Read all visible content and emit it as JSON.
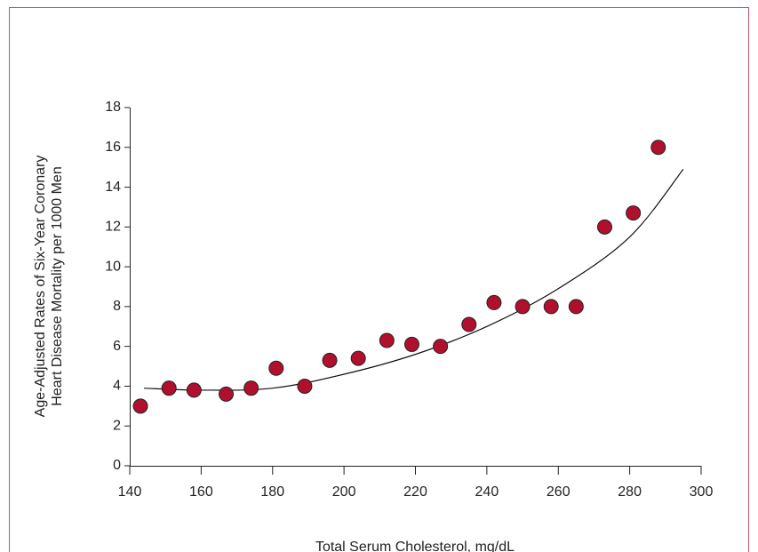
{
  "chart_data": {
    "type": "scatter",
    "x_label": "Total Serum Cholesterol, mg/dL",
    "y_label": [
      "Age-Adjusted Rates of Six-Year Coronary",
      "Heart Disease Mortality per 1000 Men"
    ],
    "xlim": [
      140,
      300
    ],
    "ylim": [
      0,
      18
    ],
    "xticks": [
      140,
      160,
      180,
      200,
      220,
      240,
      260,
      280,
      300
    ],
    "yticks": [
      0,
      2,
      4,
      6,
      8,
      10,
      12,
      14,
      16,
      18
    ],
    "color": "#b0102e",
    "x": [
      143,
      151,
      158,
      167,
      174,
      181,
      189,
      196,
      204,
      212,
      219,
      227,
      235,
      242,
      250,
      258,
      265,
      273,
      281,
      288
    ],
    "values": [
      3.0,
      3.9,
      3.8,
      3.6,
      3.9,
      4.9,
      4.0,
      5.3,
      5.4,
      6.3,
      6.1,
      6.0,
      7.1,
      8.2,
      8.0,
      8.0,
      8.0,
      12.0,
      12.7,
      16.0
    ],
    "fit": {
      "x": [
        144,
        160,
        180,
        200,
        220,
        240,
        260,
        280,
        295
      ],
      "values": [
        3.9,
        3.8,
        3.9,
        4.6,
        5.6,
        7.0,
        8.9,
        11.5,
        14.9
      ],
      "color": "#111111"
    }
  }
}
